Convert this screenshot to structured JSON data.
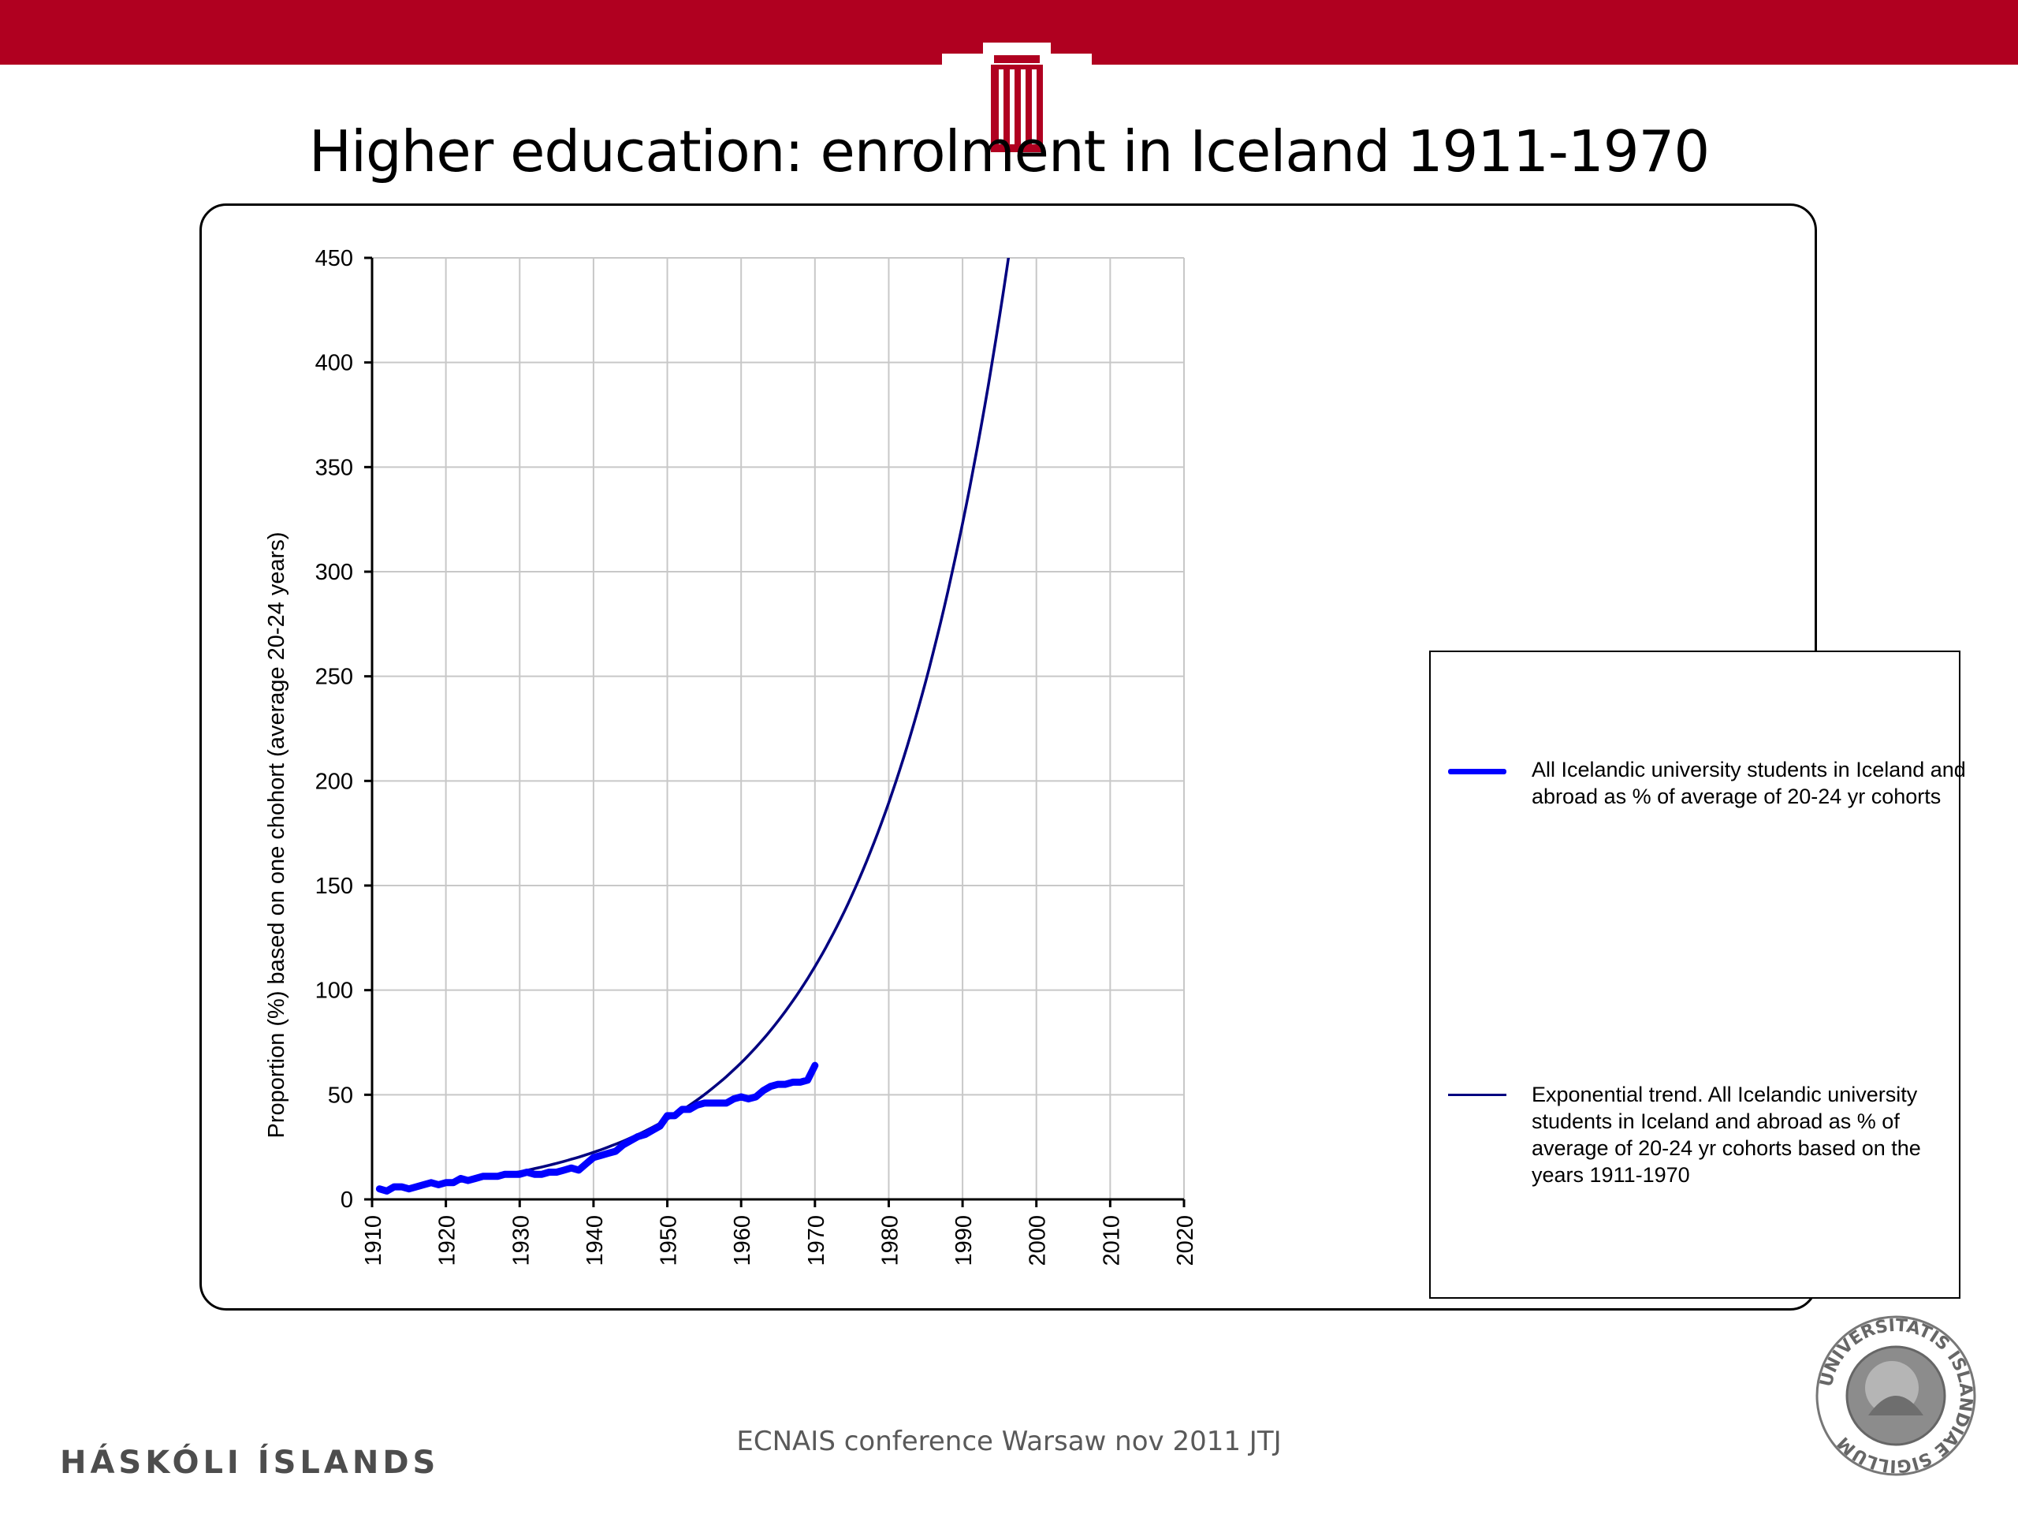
{
  "slide": {
    "title": "Higher education: enrolment in Iceland 1911-1970",
    "footer": "ECNAIS conference Warsaw nov 2011 JTJ",
    "university_name": "HÁSKÓLI ÍSLANDS",
    "seal_text": "UNIVERSITATIS ISLANDIAE SIGILLUM",
    "accent_color": "#b00020"
  },
  "chart_data": {
    "type": "line",
    "title": "",
    "xlabel": "",
    "ylabel": "Proportion (%) based on one chohort (average  20-24  years)",
    "xlim": [
      1910,
      2020
    ],
    "ylim": [
      0,
      450
    ],
    "x_ticks": [
      1910,
      1920,
      1930,
      1940,
      1950,
      1960,
      1970,
      1980,
      1990,
      2000,
      2010,
      2020
    ],
    "y_ticks": [
      0,
      50,
      100,
      150,
      200,
      250,
      300,
      350,
      400,
      450
    ],
    "grid": true,
    "legend_position": "right",
    "series": [
      {
        "name": "All Icelandic university students in Iceland and abroad as % of average of 20-24 yr cohorts",
        "color": "#0000ff",
        "style": "thick",
        "x": [
          1911,
          1912,
          1913,
          1914,
          1915,
          1916,
          1917,
          1918,
          1919,
          1920,
          1921,
          1922,
          1923,
          1924,
          1925,
          1926,
          1927,
          1928,
          1929,
          1930,
          1931,
          1932,
          1933,
          1934,
          1935,
          1936,
          1937,
          1938,
          1939,
          1940,
          1941,
          1942,
          1943,
          1944,
          1945,
          1946,
          1947,
          1948,
          1949,
          1950,
          1951,
          1952,
          1953,
          1954,
          1955,
          1956,
          1957,
          1958,
          1959,
          1960,
          1961,
          1962,
          1963,
          1964,
          1965,
          1966,
          1967,
          1968,
          1969,
          1970
        ],
        "y": [
          5,
          4,
          6,
          6,
          5,
          6,
          7,
          8,
          7,
          8,
          8,
          10,
          9,
          10,
          11,
          11,
          11,
          12,
          12,
          12,
          13,
          12,
          12,
          13,
          13,
          14,
          15,
          14,
          17,
          20,
          21,
          22,
          23,
          26,
          28,
          30,
          31,
          33,
          35,
          40,
          40,
          43,
          43,
          45,
          46,
          46,
          46,
          46,
          48,
          49,
          48,
          49,
          52,
          54,
          55,
          55,
          56,
          56,
          57,
          64
        ]
      },
      {
        "name": "Exponential trend. All Icelandic university students in Iceland and abroad as % of average of 20-24 yr cohorts based on the years 1911-1970",
        "color": "#000080",
        "style": "thin",
        "equation": "y = 6.6 * exp(0.0533 * (x - 1917))",
        "x_range": [
          1917,
          2006
        ]
      }
    ]
  }
}
